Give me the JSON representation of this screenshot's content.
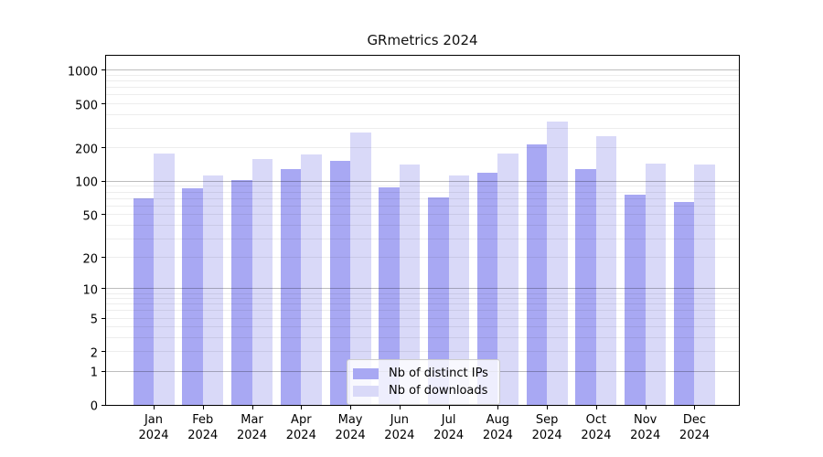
{
  "chart_data": {
    "type": "bar",
    "title": "GRmetrics 2024",
    "categories": [
      "Jan 2024",
      "Feb 2024",
      "Mar 2024",
      "Apr 2024",
      "May 2024",
      "Jun 2024",
      "Jul 2024",
      "Aug 2024",
      "Sep 2024",
      "Oct 2024",
      "Nov 2024",
      "Dec 2024"
    ],
    "series": [
      {
        "name": "Nb of distinct IPs",
        "color": "#a8a8f3",
        "values": [
          70,
          87,
          102,
          130,
          152,
          88,
          71,
          120,
          217,
          130,
          76,
          65
        ]
      },
      {
        "name": "Nb of downloads",
        "color": "#d9d9f8",
        "values": [
          178,
          114,
          160,
          176,
          274,
          141,
          112,
          180,
          349,
          254,
          144,
          141
        ]
      }
    ],
    "xlabel": "",
    "ylabel": "",
    "y_scale": "log1p",
    "ylim": [
      0,
      1400
    ],
    "y_tick_values": [
      0,
      1,
      2,
      5,
      10,
      20,
      50,
      100,
      200,
      500,
      1000
    ],
    "y_tick_labels": [
      "0",
      "1",
      "2",
      "5",
      "10",
      "20",
      "50",
      "100",
      "200",
      "500",
      "1000"
    ],
    "grid": true,
    "legend_position": "lower center"
  },
  "style": {
    "spine_color": "#000000",
    "major_grid_color": "#bdbdbd",
    "minor_grid_color": "#ededed",
    "text_color": "#000000",
    "background": "#ffffff"
  }
}
